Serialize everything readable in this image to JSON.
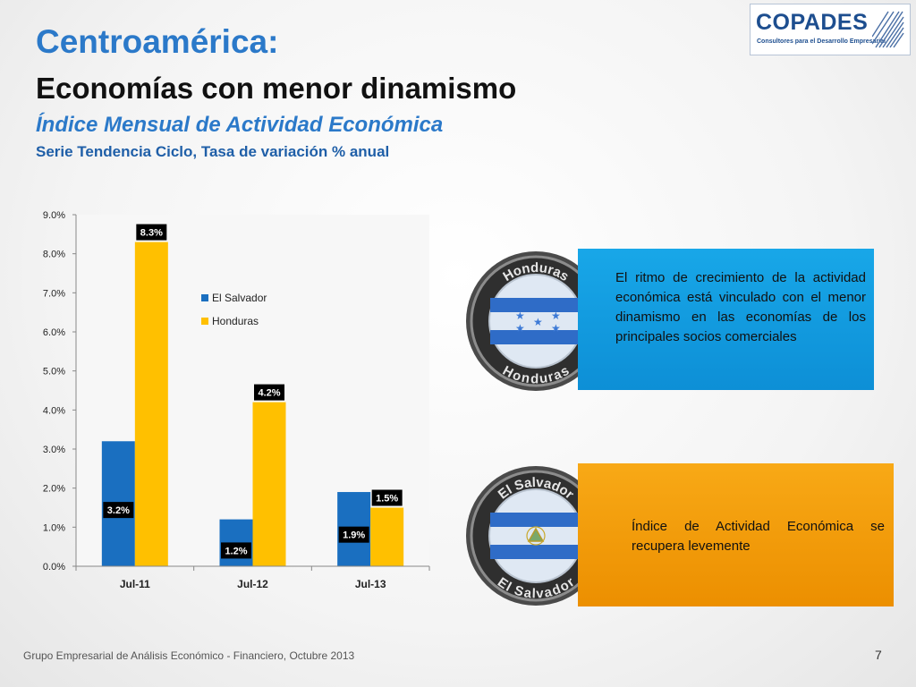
{
  "header": {
    "title": "Centroamérica:",
    "subtitle": "Economías con menor dinamismo",
    "index_title": "Índice Mensual de Actividad Económica",
    "series_note": "Serie Tendencia Ciclo, Tasa de variación % anual"
  },
  "logo": {
    "name": "COPADES",
    "tagline": "Consultores para el Desarrollo Empresarial"
  },
  "chart_data": {
    "type": "bar",
    "categories": [
      "Jul-11",
      "Jul-12",
      "Jul-13"
    ],
    "series": [
      {
        "name": "El Salvador",
        "values": [
          3.2,
          1.2,
          1.9
        ],
        "labels": [
          "3.2%",
          "1.2%",
          "1.9%"
        ],
        "color": "#1a6fc0"
      },
      {
        "name": "Honduras",
        "values": [
          8.3,
          4.2,
          1.5
        ],
        "labels": [
          "8.3%",
          "4.2%",
          "1.5%"
        ],
        "color": "#ffc000"
      }
    ],
    "ylim": [
      0,
      9
    ],
    "yticks": [
      "0.0%",
      "1.0%",
      "2.0%",
      "3.0%",
      "4.0%",
      "5.0%",
      "6.0%",
      "7.0%",
      "8.0%",
      "9.0%"
    ],
    "grid": false,
    "legend": "right"
  },
  "cards": {
    "honduras": {
      "badge_label": "Honduras",
      "text": "El ritmo de crecimiento de la actividad económica está vinculado con el menor dinamismo en las economías de los principales socios comerciales"
    },
    "el_salvador": {
      "badge_label": "El Salvador",
      "text": "Índice de Actividad Económica se recupera levemente"
    }
  },
  "footer": {
    "text": "Grupo Empresarial de Análisis Económico - Financiero, Octubre 2013",
    "page": "7"
  },
  "colors": {
    "accent_blue": "#2b79c9",
    "card_blue": "#12a0e2",
    "card_orange": "#f29a05"
  }
}
